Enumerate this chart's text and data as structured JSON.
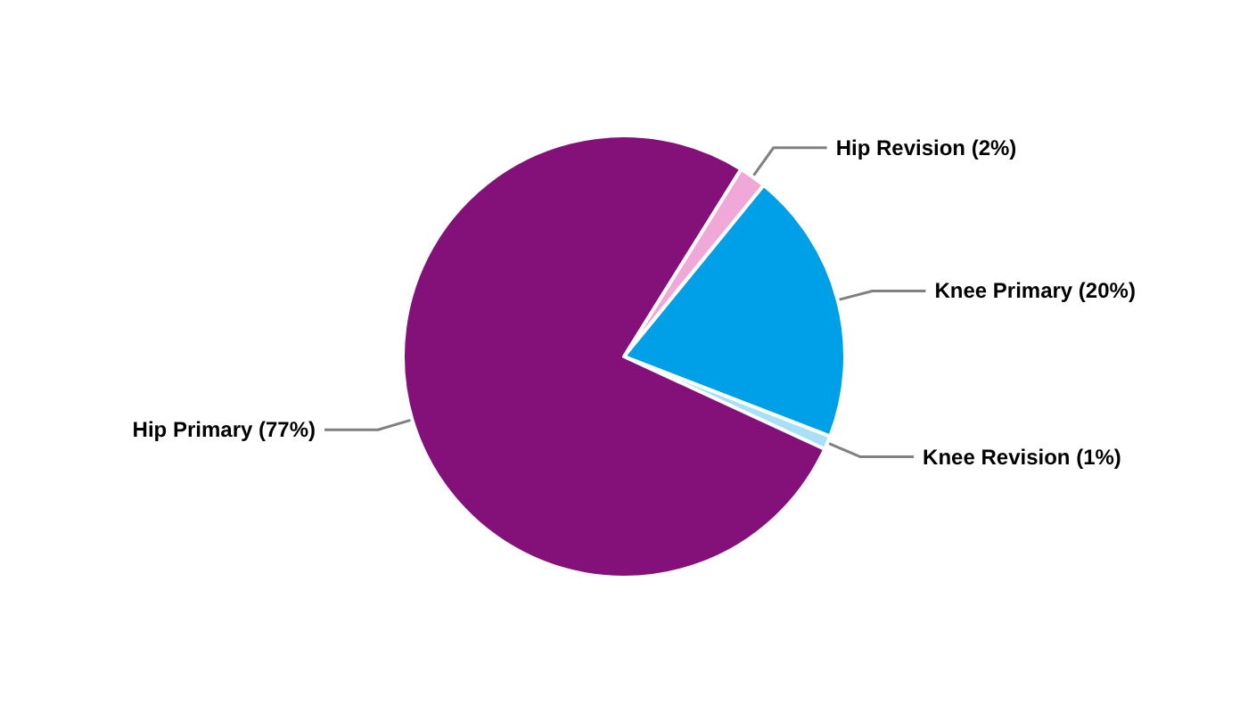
{
  "chart_data": {
    "type": "pie",
    "categories": [
      "Hip Revision",
      "Knee Primary",
      "Knee Revision",
      "Hip Primary"
    ],
    "values": [
      2,
      20,
      1,
      77
    ],
    "colors": [
      "#f0a8d8",
      "#00a0e8",
      "#a8e0f8",
      "#84107a"
    ],
    "value_labels": [
      "(2%)",
      "(20%)",
      "(1%)",
      "(77%)"
    ],
    "legend": false
  }
}
